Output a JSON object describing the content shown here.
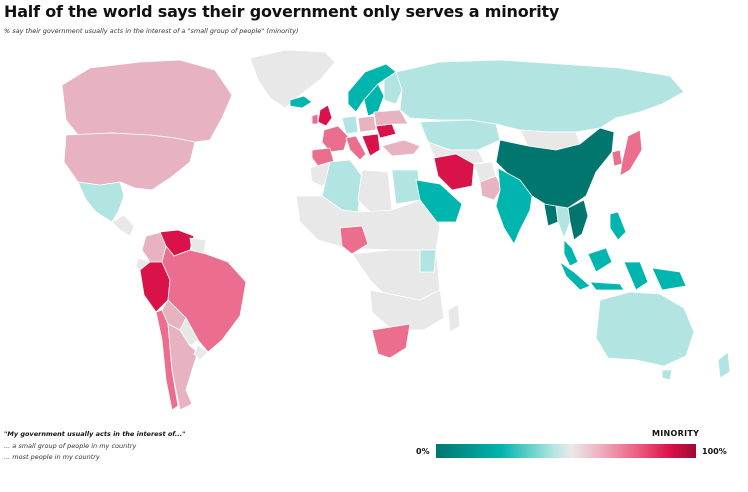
{
  "title": "Half of the world says their government only serves a minority",
  "subtitle": "% say their government usually acts in the interest of a \"small group of people\" (minority)",
  "legend": {
    "question": "\"My government usually acts in the interest of...\"",
    "options": [
      "... a small group of people in my country",
      "... most people in my country"
    ],
    "scale_title": "MINORITY",
    "min_label": "0%",
    "max_label": "100%"
  },
  "colors": {
    "no_data": "#e8e8e8",
    "teal_dark": "#00766f",
    "teal": "#00b5ad",
    "teal_light": "#b2e5e1",
    "pink_light": "#e8b3c1",
    "pink": "#ec6e8f",
    "crimson": "#d9124a"
  },
  "countries": [
    {
      "name": "Canada",
      "color": "pink_light"
    },
    {
      "name": "United States",
      "color": "pink_light"
    },
    {
      "name": "Mexico",
      "color": "teal_light"
    },
    {
      "name": "Venezuela",
      "color": "crimson"
    },
    {
      "name": "Colombia",
      "color": "pink_light"
    },
    {
      "name": "Peru",
      "color": "crimson"
    },
    {
      "name": "Brazil",
      "color": "pink"
    },
    {
      "name": "Bolivia",
      "color": "pink_light"
    },
    {
      "name": "Chile",
      "color": "pink"
    },
    {
      "name": "Argentina",
      "color": "pink_light"
    },
    {
      "name": "Iceland",
      "color": "teal"
    },
    {
      "name": "United Kingdom",
      "color": "crimson"
    },
    {
      "name": "Spain",
      "color": "pink"
    },
    {
      "name": "France",
      "color": "pink"
    },
    {
      "name": "Italy",
      "color": "pink"
    },
    {
      "name": "Germany",
      "color": "teal_light"
    },
    {
      "name": "Norway",
      "color": "teal"
    },
    {
      "name": "Sweden",
      "color": "teal"
    },
    {
      "name": "Poland",
      "color": "pink_light"
    },
    {
      "name": "Romania",
      "color": "crimson"
    },
    {
      "name": "Greece",
      "color": "crimson"
    },
    {
      "name": "Turkey",
      "color": "pink_light"
    },
    {
      "name": "Russia",
      "color": "teal_light"
    },
    {
      "name": "Kazakhstan",
      "color": "teal_light"
    },
    {
      "name": "Algeria",
      "color": "teal_light"
    },
    {
      "name": "Egypt",
      "color": "teal_light"
    },
    {
      "name": "Saudi Arabia",
      "color": "teal"
    },
    {
      "name": "Iran",
      "color": "crimson"
    },
    {
      "name": "Pakistan",
      "color": "pink_light"
    },
    {
      "name": "India",
      "color": "teal"
    },
    {
      "name": "China",
      "color": "teal_dark"
    },
    {
      "name": "Mongolia",
      "color": "no_data"
    },
    {
      "name": "Japan",
      "color": "pink"
    },
    {
      "name": "South Korea",
      "color": "pink"
    },
    {
      "name": "Vietnam",
      "color": "teal_dark"
    },
    {
      "name": "Thailand",
      "color": "teal_light"
    },
    {
      "name": "Malaysia",
      "color": "teal"
    },
    {
      "name": "Philippines",
      "color": "teal"
    },
    {
      "name": "Indonesia",
      "color": "teal"
    },
    {
      "name": "Australia",
      "color": "teal_light"
    },
    {
      "name": "New Zealand",
      "color": "teal_light"
    },
    {
      "name": "Nigeria",
      "color": "pink"
    },
    {
      "name": "Kenya",
      "color": "teal_light"
    },
    {
      "name": "South Africa",
      "color": "pink"
    },
    {
      "name": "Greenland",
      "color": "no_data"
    },
    {
      "name": "Rest of Africa",
      "color": "no_data"
    }
  ]
}
